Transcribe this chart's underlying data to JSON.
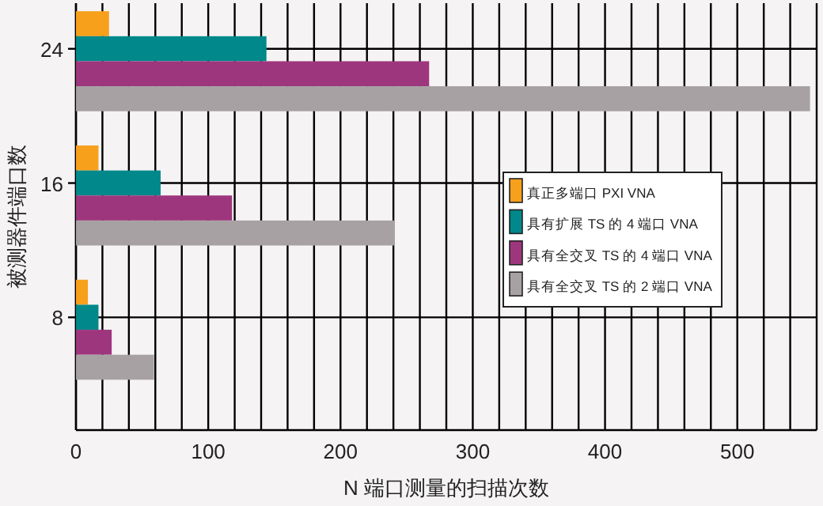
{
  "chart_data": {
    "type": "bar",
    "orientation": "horizontal",
    "xlabel": "N 端口测量的扫描次数",
    "ylabel": "被测器件端口数",
    "categories": [
      "24",
      "16",
      "8"
    ],
    "series": [
      {
        "name": "真正多端口 PXI VNA",
        "color": "#f7a01c",
        "values": [
          25,
          17,
          9
        ]
      },
      {
        "name": "具有扩展 TS 的 4 端口 VNA",
        "color": "#00888a",
        "values": [
          144,
          64,
          17
        ]
      },
      {
        "name": "具有全交叉 TS 的 4 端口 VNA",
        "color": "#9e367d",
        "values": [
          267,
          118,
          27
        ]
      },
      {
        "name": "具有全交叉 TS 的 2 端口 VNA",
        "color": "#a8a1a3",
        "values": [
          555,
          241,
          59
        ]
      }
    ],
    "xlim": [
      0,
      560
    ],
    "xticks": [
      0,
      {
        "value": 20,
        "label": null
      },
      {
        "value": 40,
        "label": null
      },
      {
        "value": 60,
        "label": null
      },
      {
        "value": 80,
        "label": null
      },
      100,
      {
        "value": 120,
        "label": null
      },
      {
        "value": 140,
        "label": null
      },
      {
        "value": 160,
        "label": null
      },
      {
        "value": 180,
        "label": null
      },
      200,
      {
        "value": 220,
        "label": null
      },
      {
        "value": 240,
        "label": null
      },
      {
        "value": 260,
        "label": null
      },
      {
        "value": 280,
        "label": null
      },
      300,
      {
        "value": 320,
        "label": null
      },
      {
        "value": 340,
        "label": null
      },
      {
        "value": 360,
        "label": null
      },
      {
        "value": 380,
        "label": null
      },
      400,
      {
        "value": 420,
        "label": null
      },
      {
        "value": 440,
        "label": null
      },
      {
        "value": 460,
        "label": null
      },
      {
        "value": 480,
        "label": null
      },
      500,
      {
        "value": 520,
        "label": null
      },
      {
        "value": 540,
        "label": null
      },
      {
        "value": 560,
        "label": null
      }
    ],
    "grid": true,
    "legend": "right"
  }
}
